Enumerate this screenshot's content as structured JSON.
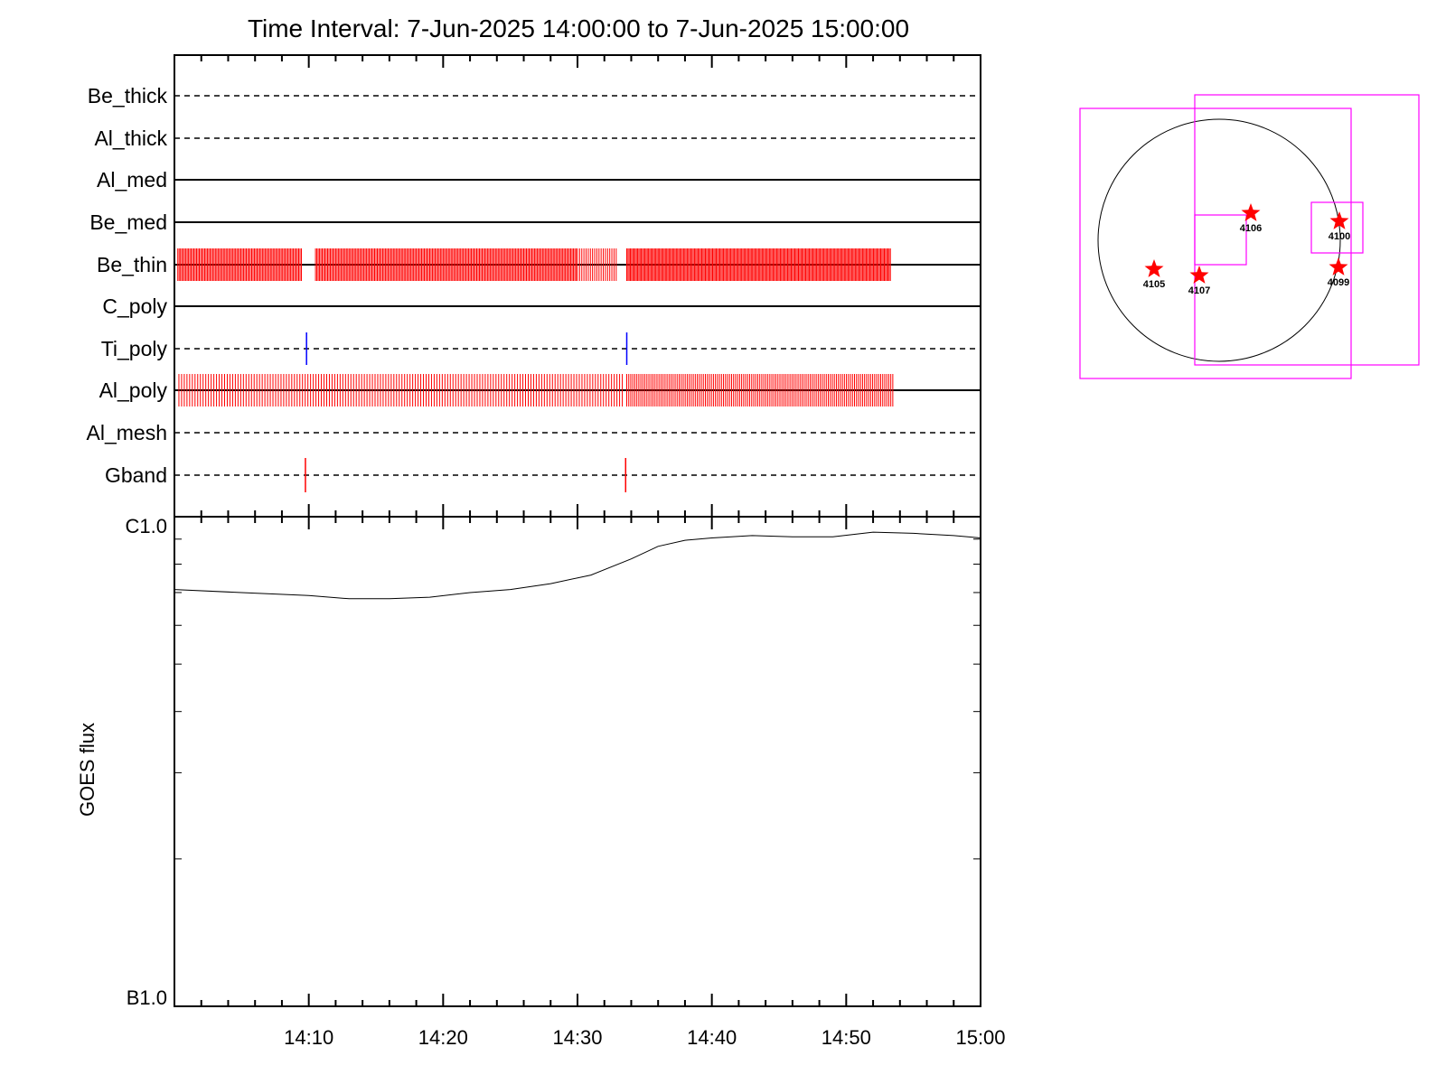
{
  "title": "Time Interval:  7-Jun-2025 14:00:00 to  7-Jun-2025 15:00:00",
  "chart_data": [
    {
      "type": "scatter",
      "name": "filter-events",
      "x_range": [
        "14:00",
        "15:00"
      ],
      "tick_labels": [
        "14:10",
        "14:20",
        "14:30",
        "14:40",
        "14:50",
        "15:00"
      ],
      "rows": [
        {
          "label": "Be_thick",
          "style": "dashed",
          "events": [],
          "color": "#ff0000"
        },
        {
          "label": "Al_thick",
          "style": "dashed",
          "events": [],
          "color": "#ff0000"
        },
        {
          "label": "Al_med",
          "style": "solid",
          "events": [],
          "color": "#ff0000"
        },
        {
          "label": "Be_med",
          "style": "solid",
          "events": [],
          "color": "#ff0000"
        },
        {
          "label": "Be_thin",
          "style": "solid",
          "color": "#ff0000",
          "segments": [
            [
              "14:00:15",
              "14:09:30",
              1.0
            ],
            [
              "14:10:30",
              "14:30:00",
              1.0
            ],
            [
              "14:30:00",
              "14:33:00",
              1.6
            ],
            [
              "14:33:40",
              "14:53:20",
              0.9
            ]
          ],
          "events": []
        },
        {
          "label": "C_poly",
          "style": "solid",
          "events": [],
          "color": "#ff0000"
        },
        {
          "label": "Ti_poly",
          "style": "dashed",
          "color": "#0000ff",
          "events": [
            "14:09:50",
            "14:33:40"
          ]
        },
        {
          "label": "Al_poly",
          "style": "solid",
          "color": "#ff0000",
          "segments": [
            [
              "14:00:20",
              "14:33:20",
              2.0
            ],
            [
              "14:33:40",
              "14:53:30",
              1.5
            ]
          ],
          "events": []
        },
        {
          "label": "Al_mesh",
          "style": "dashed",
          "events": [],
          "color": "#ff0000"
        },
        {
          "label": "Gband",
          "style": "dashed",
          "color": "#ff0000",
          "events": [
            "14:09:45",
            "14:33:35"
          ]
        }
      ]
    },
    {
      "type": "line",
      "name": "goes-flux",
      "ylabel": "GOES flux",
      "y_tick_labels": [
        "C1.0",
        "B1.0"
      ],
      "ylim": [
        1e-07,
        1e-06
      ],
      "scale": "log",
      "x": [
        "14:00",
        "14:05",
        "14:10",
        "14:13",
        "14:16",
        "14:19",
        "14:22",
        "14:25",
        "14:28",
        "14:31",
        "14:34",
        "14:36",
        "14:38",
        "14:40",
        "14:43",
        "14:46",
        "14:49",
        "14:52",
        "14:55",
        "14:58",
        "15:00"
      ],
      "y": [
        7.1e-07,
        7e-07,
        6.9e-07,
        6.8e-07,
        6.8e-07,
        6.85e-07,
        7e-07,
        7.1e-07,
        7.3e-07,
        7.6e-07,
        8.2e-07,
        8.7e-07,
        8.95e-07,
        9.05e-07,
        9.15e-07,
        9.1e-07,
        9.1e-07,
        9.3e-07,
        9.25e-07,
        9.15e-07,
        9.05e-07
      ],
      "color": "#000000"
    }
  ],
  "sun_map": {
    "regions": [
      {
        "number": "4106"
      },
      {
        "number": "4100"
      },
      {
        "number": "4105"
      },
      {
        "number": "4107"
      },
      {
        "number": "4099"
      }
    ],
    "marker_color": "#ff0000",
    "box_color": "#ff00ff",
    "disk_color": "#000000"
  }
}
